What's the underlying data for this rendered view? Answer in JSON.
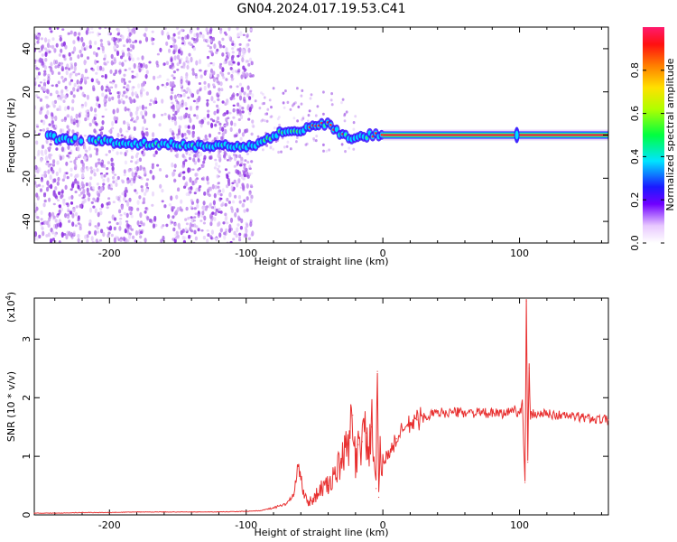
{
  "title": "GN04.2024.017.19.53.C41",
  "colors": {
    "snr_line": "#e83030",
    "spectro_noise": "#8a2be2",
    "center_line": "#e8254a",
    "axis": "#000000"
  },
  "chart_data": [
    {
      "type": "heatmap",
      "name": "spectrogram",
      "xlabel": "Height of straight line (km)",
      "ylabel": "Frequency (Hz)",
      "xlim": [
        -255,
        165
      ],
      "ylim": [
        -50,
        50
      ],
      "xticks": [
        -200,
        -100,
        0,
        100
      ],
      "yticks": [
        -40,
        -20,
        0,
        20,
        40
      ],
      "colorbar": {
        "label": "Normalized spectral amplitude",
        "range": [
          0,
          1
        ],
        "ticks": [
          0.0,
          0.2,
          0.4,
          0.6,
          0.8
        ],
        "colormap": "rainbow (white to purple to blue to cyan to green to yellow to red)"
      },
      "ridge_points": [
        {
          "x": -240,
          "y": -2
        },
        {
          "x": -220,
          "y": -2
        },
        {
          "x": -200,
          "y": -3
        },
        {
          "x": -180,
          "y": -4
        },
        {
          "x": -160,
          "y": -4
        },
        {
          "x": -140,
          "y": -5
        },
        {
          "x": -120,
          "y": -5
        },
        {
          "x": -100,
          "y": -5
        },
        {
          "x": -90,
          "y": -4
        },
        {
          "x": -80,
          "y": 0
        },
        {
          "x": -70,
          "y": 2
        },
        {
          "x": -60,
          "y": 2
        },
        {
          "x": -50,
          "y": 5
        },
        {
          "x": -40,
          "y": 5
        },
        {
          "x": -30,
          "y": 0
        },
        {
          "x": -20,
          "y": -2
        },
        {
          "x": -10,
          "y": 0
        },
        {
          "x": 0,
          "y": 0
        },
        {
          "x": 100,
          "y": 0
        },
        {
          "x": 165,
          "y": 0
        }
      ]
    },
    {
      "type": "line",
      "name": "snr",
      "xlabel": "Height of straight line (km)",
      "ylabel": "SNR (10 * v/v)",
      "yscale_label": "(x10",
      "yscale_exp": "4",
      "xlim": [
        -255,
        165
      ],
      "ylim": [
        0,
        3.7
      ],
      "xticks": [
        -200,
        -100,
        0,
        100
      ],
      "yticks": [
        0,
        1,
        2,
        3
      ],
      "series": [
        {
          "x": [
            -255,
            -240,
            -220,
            -200,
            -180,
            -160,
            -140,
            -120,
            -100,
            -90,
            -80,
            -70,
            -65,
            -62,
            -58,
            -55,
            -50,
            -45,
            -40,
            -35,
            -30,
            -25,
            -22,
            -20,
            -18,
            -15,
            -12,
            -10,
            -8,
            -5,
            -4,
            -3,
            -2,
            0,
            5,
            10,
            15,
            20,
            25,
            30,
            40,
            50,
            60,
            70,
            80,
            90,
            95,
            100,
            102,
            104,
            105,
            106,
            107,
            108,
            110,
            115,
            120,
            130,
            140,
            150,
            165
          ],
          "y": [
            0.03,
            0.03,
            0.04,
            0.04,
            0.05,
            0.05,
            0.05,
            0.05,
            0.06,
            0.07,
            0.12,
            0.2,
            0.35,
            0.85,
            0.4,
            0.2,
            0.3,
            0.45,
            0.5,
            0.7,
            0.9,
            1.2,
            1.7,
            0.9,
            1.2,
            1.25,
            1.4,
            1.05,
            1.5,
            0.45,
            2.45,
            0.3,
            1.0,
            0.95,
            1.05,
            1.3,
            1.45,
            1.55,
            1.62,
            1.68,
            1.74,
            1.75,
            1.75,
            1.74,
            1.73,
            1.73,
            1.8,
            1.75,
            1.9,
            0.55,
            3.65,
            0.9,
            2.5,
            1.7,
            1.72,
            1.73,
            1.72,
            1.7,
            1.68,
            1.65,
            1.62
          ]
        }
      ]
    }
  ]
}
